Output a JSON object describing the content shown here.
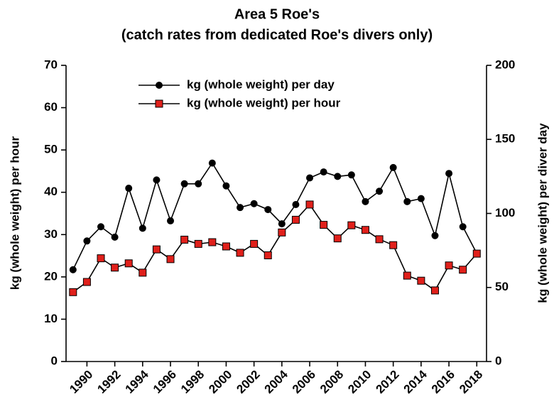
{
  "chart_data": {
    "type": "line",
    "title": "Area 5 Roe's",
    "subtitle": "(catch rates from dedicated Roe's divers only)",
    "x": [
      1989,
      1990,
      1991,
      1992,
      1993,
      1994,
      1995,
      1996,
      1997,
      1998,
      1999,
      2000,
      2001,
      2002,
      2003,
      2004,
      2005,
      2006,
      2007,
      2008,
      2009,
      2010,
      2011,
      2012,
      2013,
      2014,
      2015,
      2016,
      2017,
      2018
    ],
    "series": [
      {
        "name": "kg (whole weight) per day",
        "color": "#000000",
        "marker": "circle",
        "axis": "y2",
        "values": [
          62,
          81.4,
          91,
          84,
          117,
          90,
          122.6,
          95,
          120,
          120,
          134,
          118.6,
          104,
          106.6,
          102.6,
          93,
          106,
          124,
          128,
          125,
          126,
          108,
          115,
          131,
          108,
          110,
          85,
          127,
          91,
          73
        ]
      },
      {
        "name": "kg (whole weight) per hour",
        "color": "#e0201b",
        "marker": "square",
        "values": [
          16.4,
          18.8,
          24.4,
          22.2,
          23.2,
          21,
          26.5,
          24.2,
          28.8,
          27.8,
          28.2,
          27.2,
          25.7,
          27.8,
          25.1,
          30.5,
          33.5,
          37.1,
          32.3,
          29.1,
          32.2,
          31.1,
          28.9,
          27.5,
          20.3,
          19.1,
          16.8,
          22.7,
          21.7,
          25.5
        ]
      }
    ],
    "ylabel": "kg (whole weight) per hour",
    "y2label": "kg (whole weight) per diver day",
    "xlim": [
      1988.5,
      2018.7
    ],
    "xticks": [
      1990,
      1992,
      1994,
      1996,
      1998,
      2000,
      2002,
      2004,
      2006,
      2008,
      2010,
      2012,
      2014,
      2016,
      2018
    ],
    "ylim": [
      0,
      70
    ],
    "yticks": [
      0,
      10,
      20,
      30,
      40,
      50,
      60,
      70
    ],
    "y2lim": [
      0,
      200
    ],
    "y2ticks": [
      0,
      50,
      100,
      150,
      200
    ],
    "legend": "top"
  }
}
